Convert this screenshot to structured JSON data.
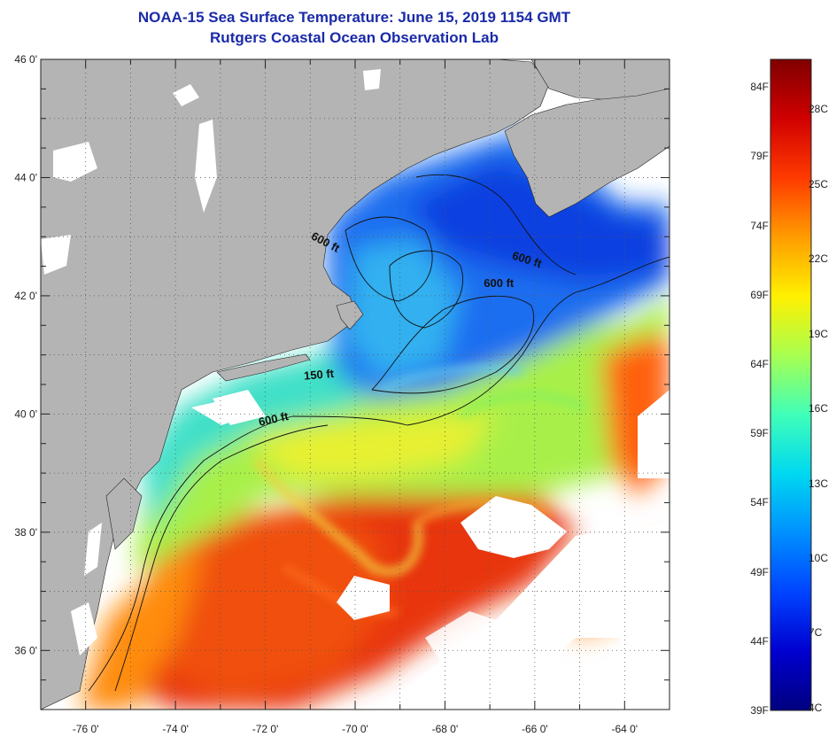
{
  "title_line1": "NOAA-15 Sea Surface Temperature:  June 15, 2019 1154 GMT",
  "title_line2": "Rutgers Coastal Ocean Observation Lab",
  "lat_labels": [
    {
      "lat": 46,
      "text": "46 0'"
    },
    {
      "lat": 44,
      "text": "44 0'"
    },
    {
      "lat": 42,
      "text": "42 0'"
    },
    {
      "lat": 40,
      "text": "40 0'"
    },
    {
      "lat": 38,
      "text": "38 0'"
    },
    {
      "lat": 36,
      "text": "36 0'"
    }
  ],
  "lon_labels": [
    {
      "lon": -76,
      "text": "-76 0'"
    },
    {
      "lon": -74,
      "text": "-74 0'"
    },
    {
      "lon": -72,
      "text": "-72 0'"
    },
    {
      "lon": -70,
      "text": "-70 0'"
    },
    {
      "lon": -68,
      "text": "-68 0'"
    },
    {
      "lon": -66,
      "text": "-66 0'"
    },
    {
      "lon": -64,
      "text": "-64 0'"
    }
  ],
  "contour_labels": [
    {
      "text": "600 ft",
      "lon": -70.7,
      "lat": 42.85,
      "rot": 28
    },
    {
      "text": "600 ft",
      "lon": -66.2,
      "lat": 42.55,
      "rot": 18
    },
    {
      "text": "600 ft",
      "lon": -66.8,
      "lat": 42.15,
      "rot": 0
    },
    {
      "text": "150 ft",
      "lon": -70.8,
      "lat": 40.6,
      "rot": -5
    },
    {
      "text": "600 ft",
      "lon": -71.8,
      "lat": 39.85,
      "rot": -12
    }
  ],
  "colorbar": {
    "fahrenheit": [
      {
        "t": 84,
        "text": "84F"
      },
      {
        "t": 79,
        "text": "79F"
      },
      {
        "t": 74,
        "text": "74F"
      },
      {
        "t": 69,
        "text": "69F"
      },
      {
        "t": 64,
        "text": "64F"
      },
      {
        "t": 59,
        "text": "59F"
      },
      {
        "t": 54,
        "text": "54F"
      },
      {
        "t": 49,
        "text": "49F"
      },
      {
        "t": 44,
        "text": "44F"
      },
      {
        "t": 39,
        "text": "39F"
      }
    ],
    "celsius": [
      {
        "t": 28,
        "text": "28C"
      },
      {
        "t": 25,
        "text": "25C"
      },
      {
        "t": 22,
        "text": "22C"
      },
      {
        "t": 19,
        "text": "19C"
      },
      {
        "t": 16,
        "text": "16C"
      },
      {
        "t": 13,
        "text": "13C"
      },
      {
        "t": 10,
        "text": "10C"
      },
      {
        "t": 7,
        "text": "7C"
      },
      {
        "t": 4,
        "text": "4C"
      }
    ],
    "colors": [
      "#00007f",
      "#0000d0",
      "#0044ff",
      "#0090ff",
      "#00d8f0",
      "#40ffb8",
      "#a8ff50",
      "#fff000",
      "#ff9c00",
      "#ff3a00",
      "#d00000",
      "#800000"
    ]
  },
  "colors": {
    "land": "#b4b4b4",
    "nodata": "#ffffff",
    "title": "#1a2aa8",
    "gulf_stream": "#e8300c",
    "slope_water": "#a8f040",
    "shelf": "#36c8e8",
    "gulf_of_maine": "#1040e0"
  }
}
